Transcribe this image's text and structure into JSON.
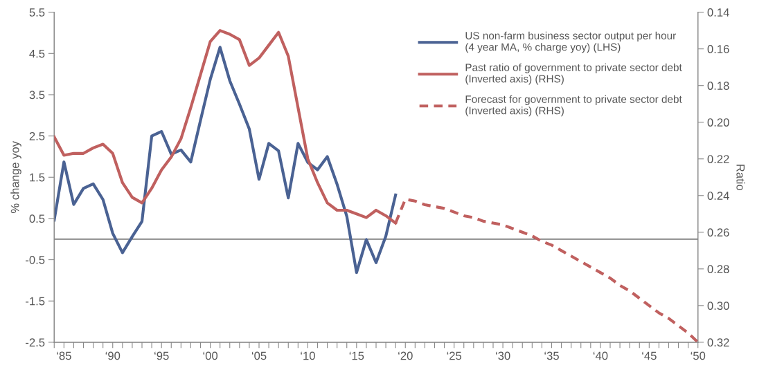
{
  "chart_data": {
    "type": "line",
    "ylabel": "% change yoy",
    "y2label": "Ratio",
    "categories": [
      null,
      "‘85",
      null,
      null,
      null,
      null,
      "‘90",
      null,
      null,
      null,
      null,
      "‘95",
      null,
      null,
      null,
      null,
      "‘00",
      null,
      null,
      null,
      null,
      "‘05",
      null,
      null,
      null,
      null,
      "‘10",
      null,
      null,
      null,
      null,
      "‘15",
      null,
      null,
      null,
      null,
      "‘20",
      null,
      null,
      null,
      null,
      "‘25",
      null,
      null,
      null,
      null,
      "‘30",
      null,
      null,
      null,
      null,
      "‘35",
      null,
      null,
      null,
      null,
      "‘40",
      null,
      null,
      null,
      null,
      "‘45",
      null,
      null,
      null,
      null,
      "‘50"
    ],
    "ylim": [
      -2.5,
      5.5
    ],
    "yticks": [
      {
        "value": -2.5,
        "label": "-2.5"
      },
      {
        "value": -1.5,
        "label": "-1.5"
      },
      {
        "value": -0.5,
        "label": "-0.5"
      },
      0.5,
      1.5,
      2.5,
      3.5,
      4.5,
      5.5
    ],
    "y2lim": [
      0.32,
      0.14
    ],
    "y2ticks": [
      {
        "value": 0.14,
        "label": "0.14"
      },
      {
        "value": 0.16,
        "label": "0.16"
      },
      {
        "value": 0.18,
        "label": "0.18"
      },
      {
        "value": 0.2,
        "label": "0.20"
      },
      {
        "value": 0.22,
        "label": "0.22"
      },
      {
        "value": 0.24,
        "label": "0.24"
      },
      {
        "value": 0.26,
        "label": "0.26"
      },
      {
        "value": 0.28,
        "label": "0.28"
      },
      {
        "value": 0.3,
        "label": "0.30"
      },
      {
        "value": 0.32,
        "label": "0.32"
      }
    ],
    "grid": false,
    "legend": "top right",
    "marker": "none",
    "ref_lines": [
      {
        "axis": "y",
        "value": 0,
        "color": "#555555",
        "line_style": "solid"
      }
    ],
    "series": [
      {
        "name": "US non-farm business sector output per hour\n(4 year MA, % charge yoy) (LHS)",
        "color": "#4a6293",
        "line_style": "solid",
        "values": [
          0.46,
          1.87,
          0.84,
          1.23,
          1.34,
          0.96,
          0.14,
          -0.33,
          0.06,
          0.43,
          2.5,
          2.61,
          2.06,
          2.16,
          1.87,
          2.88,
          3.87,
          4.65,
          3.84,
          3.27,
          2.67,
          1.45,
          2.32,
          2.14,
          1.0,
          2.32,
          1.86,
          1.68,
          2.0,
          1.33,
          0.55,
          -0.81,
          -0.01,
          -0.57,
          0.07,
          1.07,
          null,
          null,
          null,
          null,
          null,
          null,
          null,
          null,
          null,
          null,
          null,
          null,
          null,
          null,
          null,
          null,
          null,
          null,
          null,
          null,
          null,
          null,
          null,
          null,
          null,
          null,
          null,
          null,
          null,
          null,
          null
        ]
      },
      {
        "name": "Past ratio of government to private sector debt\n(Inverted axis) (RHS)",
        "color": "#c0605f",
        "axis": "y2",
        "line_style": "solid",
        "values": [
          0.208,
          0.218,
          0.217,
          0.217,
          0.214,
          0.212,
          0.217,
          0.233,
          0.241,
          0.244,
          0.236,
          0.226,
          0.219,
          0.209,
          0.192,
          0.174,
          0.156,
          0.15,
          0.152,
          0.155,
          0.169,
          0.165,
          0.158,
          0.151,
          0.164,
          0.192,
          0.22,
          0.233,
          0.244,
          0.248,
          0.248,
          0.25,
          0.252,
          0.248,
          0.251,
          0.255,
          null,
          null,
          null,
          null,
          null,
          null,
          null,
          null,
          null,
          null,
          null,
          null,
          null,
          null,
          null,
          null,
          null,
          null,
          null,
          null,
          null,
          null,
          null,
          null,
          null,
          null,
          null,
          null,
          null,
          null,
          null
        ]
      },
      {
        "name": "Forecast for government to private sector debt\n(Inverted axis) (RHS)",
        "color": "#c0605f",
        "axis": "y2",
        "line_style": "dashed",
        "values": [
          null,
          null,
          null,
          null,
          null,
          null,
          null,
          null,
          null,
          null,
          null,
          null,
          null,
          null,
          null,
          null,
          null,
          null,
          null,
          null,
          null,
          null,
          null,
          null,
          null,
          null,
          null,
          null,
          null,
          null,
          null,
          null,
          null,
          null,
          null,
          0.255,
          0.242,
          0.243,
          0.245,
          0.246,
          0.247,
          0.249,
          0.251,
          0.252,
          0.254,
          0.255,
          0.256,
          0.258,
          0.26,
          0.262,
          0.265,
          0.267,
          0.27,
          0.273,
          0.276,
          0.279,
          0.282,
          0.285,
          0.289,
          0.292,
          0.296,
          0.3,
          0.304,
          0.307,
          0.311,
          0.315,
          0.32
        ]
      }
    ]
  }
}
